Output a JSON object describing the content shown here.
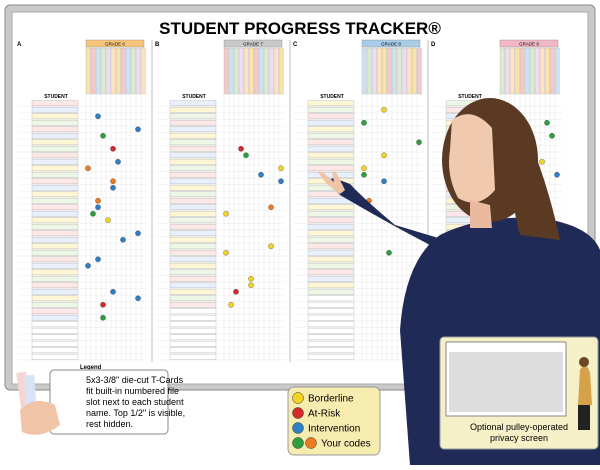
{
  "header": {
    "title": "STUDENT PROGRESS TRACKER®"
  },
  "sections": [
    {
      "letter": "A",
      "grade": "GRADE 6",
      "column_header": "STUDENT"
    },
    {
      "letter": "B",
      "grade": "GRADE 7",
      "column_header": "STUDENT"
    },
    {
      "letter": "C",
      "grade": "GRADE 8",
      "column_header": "STUDENT"
    },
    {
      "letter": "D",
      "grade": "GRADE 9",
      "column_header": "STUDENT"
    }
  ],
  "board_legend": {
    "title": "Legend"
  },
  "callouts": {
    "t_cards": [
      "5x3-3/8\" die-cut T-Cards",
      "fit built-in numbered file",
      "slot next to each student",
      "name. Top 1/2\" is visible,",
      "rest hidden."
    ],
    "privacy_screen": [
      "Optional pulley-operated",
      "privacy screen"
    ]
  },
  "legend_box": {
    "items": [
      "Borderline",
      "At-Risk",
      "Intervention",
      "Your codes"
    ]
  }
}
